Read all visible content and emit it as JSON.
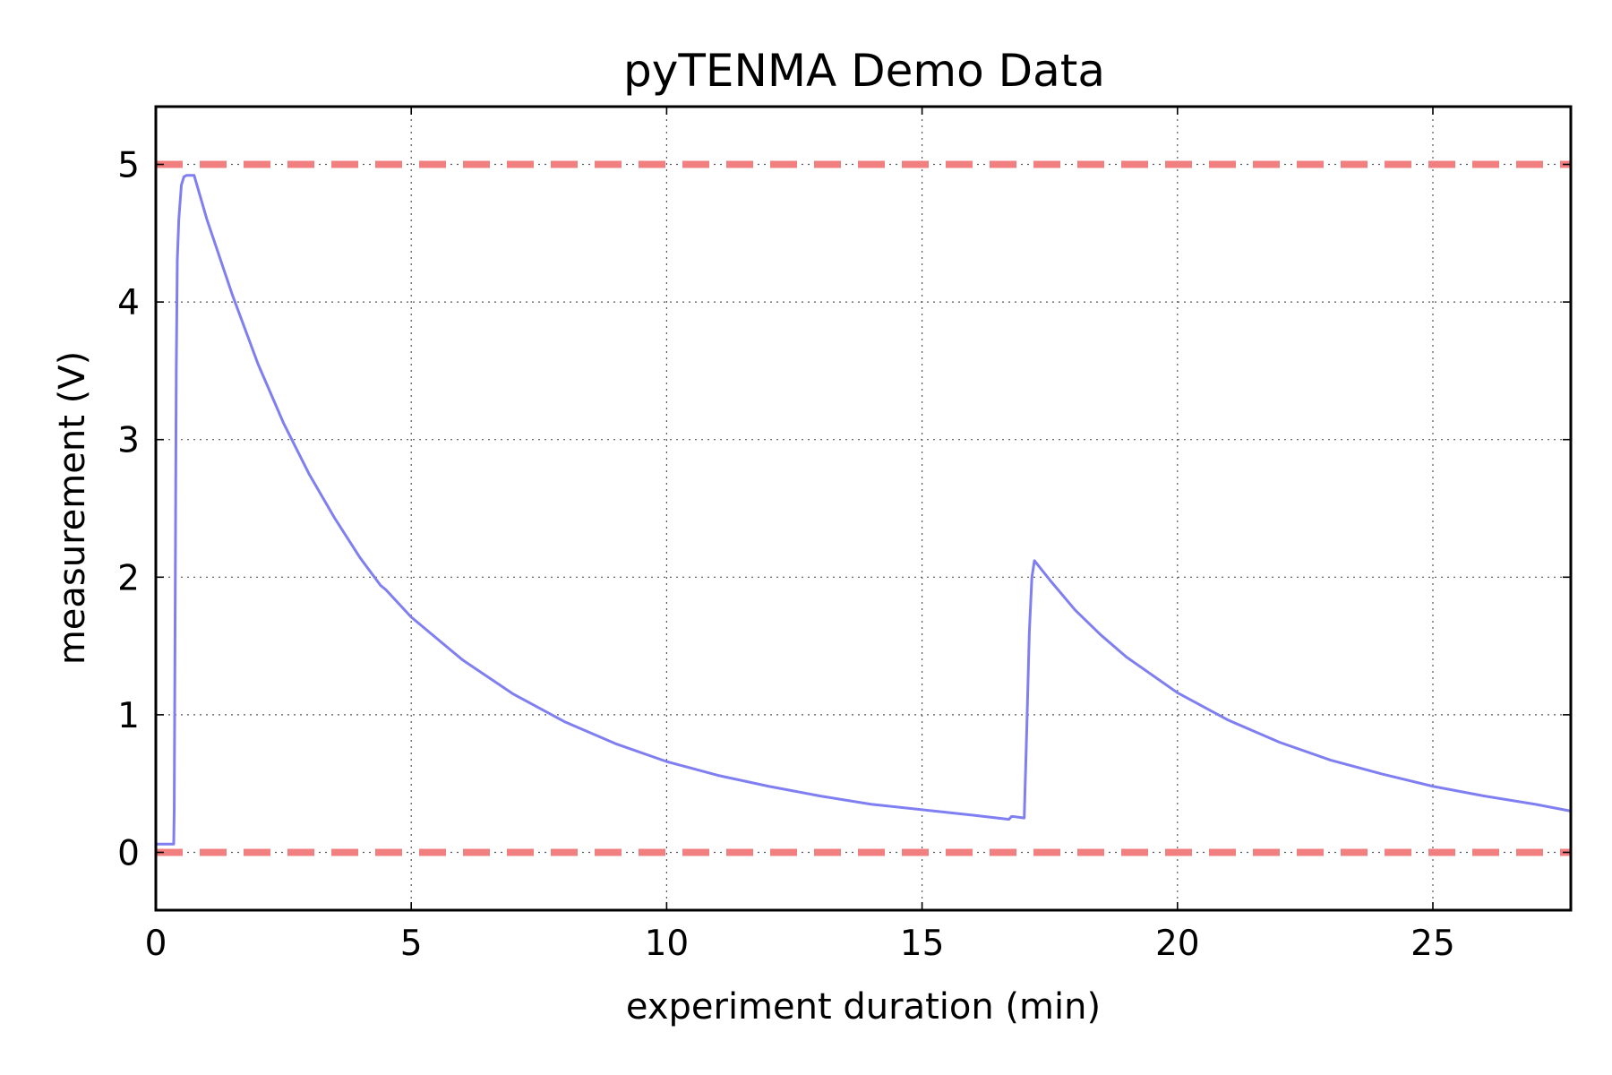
{
  "chart_data": {
    "type": "line",
    "title": "pyTENMA Demo Data",
    "xlabel": "experiment duration (min)",
    "ylabel": "measurement (V)",
    "xlim": [
      0,
      27.7
    ],
    "ylim": [
      -0.42,
      5.42
    ],
    "xticks": [
      0,
      5,
      10,
      15,
      20,
      25
    ],
    "yticks": [
      0,
      1,
      2,
      3,
      4,
      5
    ],
    "grid": true,
    "colors": {
      "series": "#7f7ff2",
      "limits": "#f27f7f"
    },
    "reference_lines": [
      {
        "name": "upper-limit",
        "y": 5.0,
        "style": "dashed"
      },
      {
        "name": "lower-limit",
        "y": 0.0,
        "style": "dashed"
      }
    ],
    "series": [
      {
        "name": "measurement",
        "x": [
          0,
          0.35,
          0.36,
          0.38,
          0.4,
          0.42,
          0.45,
          0.5,
          0.55,
          0.6,
          0.75,
          1.0,
          1.5,
          2.0,
          2.5,
          3.0,
          3.5,
          4.0,
          4.4,
          4.5,
          5.0,
          6.0,
          7.0,
          8.0,
          9.0,
          10.0,
          11.0,
          12.0,
          13.0,
          14.0,
          15.0,
          16.0,
          16.7,
          16.75,
          16.8,
          17.0,
          17.05,
          17.1,
          17.15,
          17.2,
          17.5,
          18.0,
          18.5,
          19.0,
          20.0,
          21.0,
          22.0,
          23.0,
          24.0,
          25.0,
          26.0,
          27.0,
          27.7
        ],
        "y": [
          0.06,
          0.06,
          0.3,
          1.9,
          3.5,
          4.3,
          4.6,
          4.85,
          4.91,
          4.92,
          4.92,
          4.6,
          4.05,
          3.55,
          3.12,
          2.75,
          2.43,
          2.14,
          1.94,
          1.91,
          1.71,
          1.4,
          1.15,
          0.95,
          0.79,
          0.66,
          0.56,
          0.48,
          0.41,
          0.35,
          0.31,
          0.27,
          0.24,
          0.26,
          0.26,
          0.25,
          0.9,
          1.6,
          2.0,
          2.12,
          1.98,
          1.76,
          1.58,
          1.42,
          1.16,
          0.96,
          0.8,
          0.67,
          0.57,
          0.48,
          0.41,
          0.35,
          0.3
        ]
      }
    ]
  }
}
